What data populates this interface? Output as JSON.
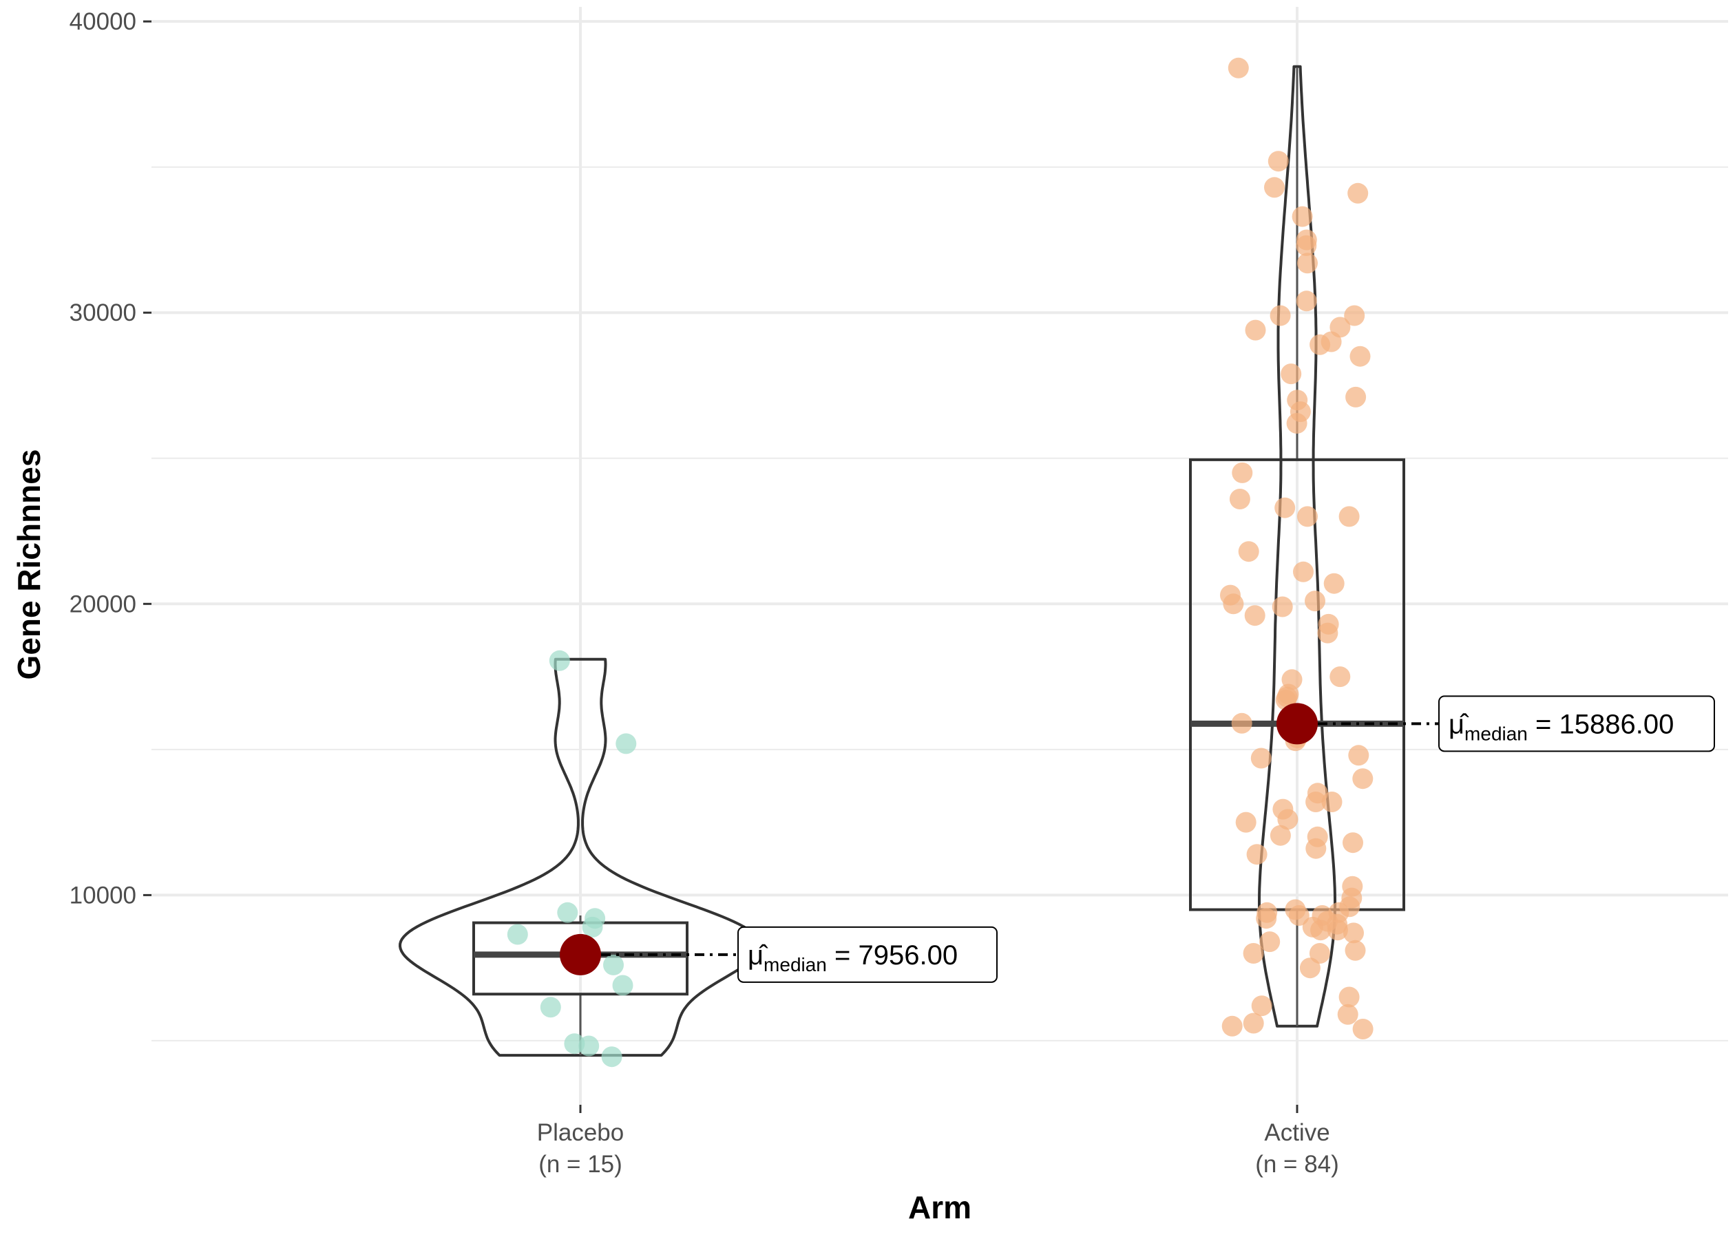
{
  "chart_data": {
    "type": "violin",
    "xlabel": "Arm",
    "ylabel": "Gene Richnnes",
    "ylim": [
      2800,
      40500
    ],
    "yticks": [
      10000,
      20000,
      30000,
      40000
    ],
    "ytick_labels": [
      "10000",
      "20000",
      "30000",
      "40000"
    ],
    "grid": true,
    "categories": [
      {
        "name": "Placebo",
        "n_label": "(n = 15)",
        "color": "#9fdcc9",
        "box": {
          "q1": 6600,
          "median": 7956,
          "q3": 9050,
          "whisker_low": 4500,
          "whisker_high": 9300
        },
        "violin_range": [
          4500,
          18100
        ],
        "median_label": {
          "mu": "μ̂",
          "sub": "median",
          "text": "= 7956.00"
        },
        "points": [
          4450,
          4820,
          4900,
          6150,
          6900,
          7600,
          7900,
          8050,
          8200,
          8650,
          8900,
          9200,
          9400,
          15200,
          18050
        ]
      },
      {
        "name": "Active",
        "n_label": "(n = 84)",
        "color": "#f3b07f",
        "box": {
          "q1": 9500,
          "median": 15886,
          "q3": 24950,
          "whisker_low": 5500,
          "whisker_high": 38400
        },
        "violin_range": [
          5500,
          38450
        ],
        "median_label": {
          "mu": "μ̂",
          "sub": "median",
          "text": "= 15886.00"
        },
        "points": [
          38400,
          35200,
          34300,
          34100,
          33300,
          32500,
          32300,
          31700,
          30400,
          29900,
          29900,
          29500,
          29400,
          29000,
          28900,
          28500,
          27900,
          27100,
          27000,
          26600,
          26200,
          24500,
          23600,
          23300,
          23000,
          23000,
          21800,
          21100,
          20700,
          20300,
          20100,
          20000,
          19900,
          19600,
          19300,
          19000,
          17500,
          17400,
          16900,
          16800,
          16700,
          15900,
          15400,
          15300,
          14800,
          14700,
          14000,
          13500,
          13200,
          13200,
          12950,
          12600,
          12500,
          12050,
          12000,
          11800,
          11600,
          11400,
          10300,
          9900,
          9600,
          9500,
          9400,
          9400,
          9300,
          9300,
          9200,
          9100,
          9000,
          8900,
          8800,
          8800,
          8700,
          8400,
          8100,
          8000,
          8000,
          7500,
          6500,
          6200,
          5900,
          5600,
          5500,
          5400
        ]
      }
    ],
    "colors": {
      "median_point": "#8b0000",
      "outline": "#333333",
      "grid": "#ebebeb"
    }
  }
}
